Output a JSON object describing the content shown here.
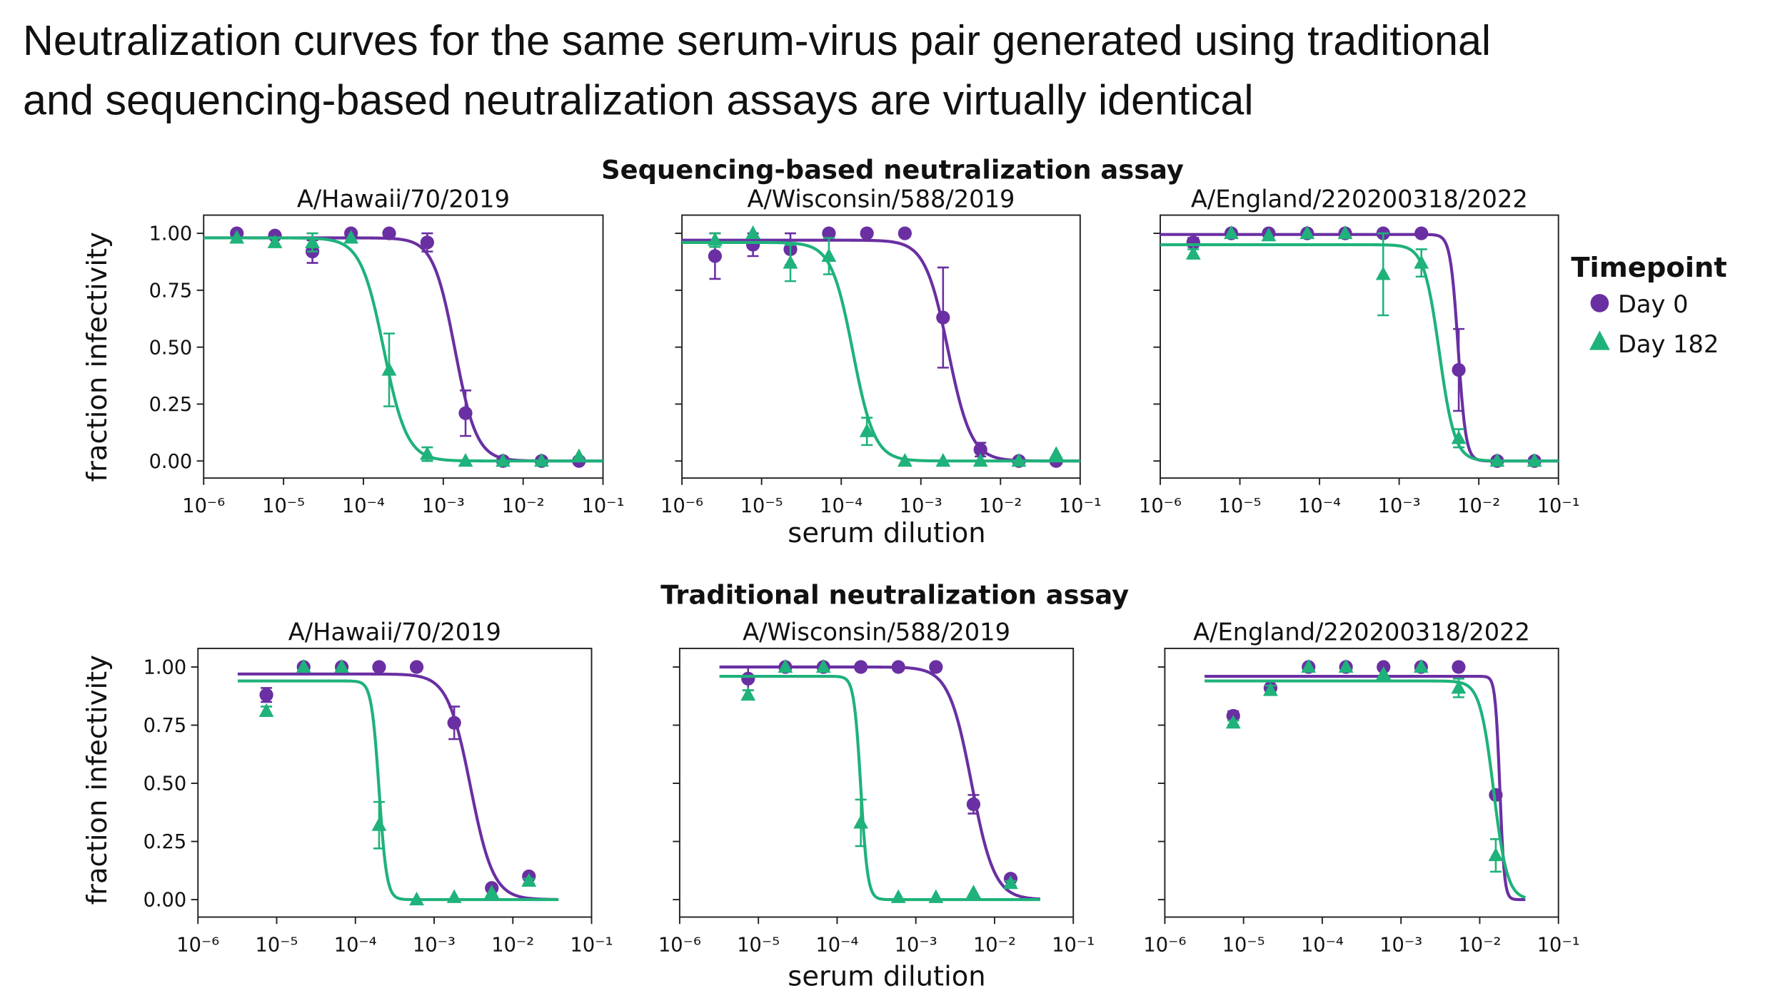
{
  "headline": {
    "line1": "Neutralization curves for the same serum-virus pair generated using traditional",
    "line2": "and sequencing-based neutralization assays are virtually identical"
  },
  "colors": {
    "day0": "#6a2fa2",
    "day182": "#1fb27b"
  },
  "legend": {
    "title": "Timepoint",
    "items": [
      {
        "label": "Day 0",
        "marker": "circle",
        "color": "#6a2fa2"
      },
      {
        "label": "Day 182",
        "marker": "triangle",
        "color": "#1fb27b"
      }
    ]
  },
  "chart_data": [
    {
      "type": "line",
      "assay": "Sequencing-based neutralization assay",
      "xlabel": "serum dilution",
      "ylabel": "fraction infectivity",
      "xscale": "log",
      "xlim": [
        1e-06,
        0.1
      ],
      "ylim": [
        -0.075,
        1.08
      ],
      "xticks": [
        1e-06,
        1e-05,
        0.0001,
        0.001,
        0.01,
        0.1
      ],
      "xtick_labels": [
        "10⁻⁶",
        "10⁻⁵",
        "10⁻⁴",
        "10⁻³",
        "10⁻²",
        "10⁻¹"
      ],
      "yticks": [
        0,
        0.25,
        0.5,
        0.75,
        1.0
      ],
      "ytick_labels": [
        "0.00",
        "0.25",
        "0.50",
        "0.75",
        "1.00"
      ],
      "panels": [
        {
          "title": "A/Hawaii/70/2019",
          "x": [
            2.6e-06,
            7.8e-06,
            2.3e-05,
            7e-05,
            0.00021,
            0.00063,
            0.0019,
            0.0056,
            0.017,
            0.05
          ],
          "series": [
            {
              "name": "Day 0",
              "y": [
                1.0,
                0.99,
                0.92,
                1.0,
                1.0,
                0.96,
                0.21,
                0.0,
                0.0,
                0.0
              ],
              "err": [
                0,
                0,
                0.05,
                0,
                0,
                0.04,
                0.1,
                0,
                0,
                0
              ],
              "fit": {
                "top": 0.98,
                "bottom": 0,
                "ic50": 0.0014,
                "hill": 3.2,
                "xmin": 1e-06,
                "xmax": 0.1
              }
            },
            {
              "name": "Day 182",
              "y": [
                0.98,
                0.96,
                0.96,
                0.98,
                0.4,
                0.03,
                0.0,
                0.0,
                0.0,
                0.02
              ],
              "err": [
                0,
                0,
                0.04,
                0,
                0.16,
                0.03,
                0,
                0,
                0,
                0
              ],
              "fit": {
                "top": 0.98,
                "bottom": 0,
                "ic50": 0.00018,
                "hill": 3.0,
                "xmin": 1e-06,
                "xmax": 0.1
              }
            }
          ]
        },
        {
          "title": "A/Wisconsin/588/2019",
          "x": [
            2.6e-06,
            7.8e-06,
            2.3e-05,
            7e-05,
            0.00021,
            0.00063,
            0.0019,
            0.0056,
            0.017,
            0.05
          ],
          "series": [
            {
              "name": "Day 0",
              "y": [
                0.9,
                0.95,
                0.93,
                1.0,
                1.0,
                1.0,
                0.63,
                0.05,
                0.0,
                0.0
              ],
              "err": [
                0.1,
                0.05,
                0.07,
                0,
                0,
                0,
                0.22,
                0.03,
                0,
                0
              ],
              "fit": {
                "top": 0.97,
                "bottom": 0,
                "ic50": 0.0022,
                "hill": 3.0,
                "xmin": 1e-06,
                "xmax": 0.1
              }
            },
            {
              "name": "Day 182",
              "y": [
                0.97,
                1.0,
                0.87,
                0.9,
                0.13,
                0.0,
                0.0,
                0.0,
                0.0,
                0.03
              ],
              "err": [
                0.03,
                0,
                0.08,
                0.08,
                0.06,
                0,
                0,
                0,
                0,
                0
              ],
              "fit": {
                "top": 0.96,
                "bottom": 0,
                "ic50": 0.00014,
                "hill": 3.2,
                "xmin": 1e-06,
                "xmax": 0.1
              }
            }
          ]
        },
        {
          "title": "A/England/220200318/2022",
          "x": [
            2.6e-06,
            7.8e-06,
            2.3e-05,
            7e-05,
            0.00021,
            0.00063,
            0.0019,
            0.0056,
            0.017,
            0.05
          ],
          "series": [
            {
              "name": "Day 0",
              "y": [
                0.96,
                1.0,
                1.0,
                1.0,
                1.0,
                1.0,
                1.0,
                0.4,
                0.0,
                0.0
              ],
              "err": [
                0.02,
                0,
                0,
                0,
                0,
                0,
                0,
                0.18,
                0,
                0
              ],
              "fit": {
                "top": 0.995,
                "bottom": 0,
                "ic50": 0.0055,
                "hill": 9,
                "xmin": 1e-06,
                "xmax": 0.1
              }
            },
            {
              "name": "Day 182",
              "y": [
                0.91,
                1.0,
                0.99,
                1.0,
                1.0,
                0.82,
                0.87,
                0.1,
                0.0,
                0.0
              ],
              "err": [
                0.02,
                0,
                0,
                0,
                0,
                0.18,
                0.06,
                0.04,
                0,
                0
              ],
              "fit": {
                "top": 0.95,
                "bottom": 0,
                "ic50": 0.0032,
                "hill": 4.5,
                "xmin": 1e-06,
                "xmax": 0.1
              }
            }
          ]
        }
      ]
    },
    {
      "type": "line",
      "assay": "Traditional neutralization assay",
      "xlabel": "serum dilution",
      "ylabel": "fraction infectivity",
      "xscale": "log",
      "xlim": [
        1e-06,
        0.1
      ],
      "ylim": [
        -0.075,
        1.08
      ],
      "xticks": [
        1e-06,
        1e-05,
        0.0001,
        0.001,
        0.01,
        0.1
      ],
      "xtick_labels": [
        "10⁻⁶",
        "10⁻⁵",
        "10⁻⁴",
        "10⁻³",
        "10⁻²",
        "10⁻¹"
      ],
      "yticks": [
        0,
        0.25,
        0.5,
        0.75,
        1.0
      ],
      "ytick_labels": [
        "0.00",
        "0.25",
        "0.50",
        "0.75",
        "1.00"
      ],
      "panels": [
        {
          "title": "A/Hawaii/70/2019",
          "x": [
            7.4e-06,
            2.2e-05,
            6.7e-05,
            0.0002,
            0.0006,
            0.0018,
            0.0054,
            0.016
          ],
          "series": [
            {
              "name": "Day 0",
              "y": [
                0.88,
                1.0,
                1.0,
                1.0,
                1.0,
                0.76,
                0.05,
                0.1
              ],
              "err": [
                0.03,
                0,
                0,
                0,
                0,
                0.07,
                0.01,
                0.01
              ],
              "fit": {
                "top": 0.97,
                "bottom": 0,
                "ic50": 0.0029,
                "hill": 3.0,
                "xmin": 3.2e-06,
                "xmax": 0.038
              }
            },
            {
              "name": "Day 182",
              "y": [
                0.81,
                1.0,
                1.0,
                0.32,
                0.0,
                0.01,
                0.03,
                0.08
              ],
              "err": [
                0.02,
                0,
                0,
                0.1,
                0,
                0,
                0,
                0.01
              ],
              "fit": {
                "top": 0.94,
                "bottom": 0,
                "ic50": 0.0002,
                "hill": 9,
                "xmin": 3.2e-06,
                "xmax": 0.038
              }
            }
          ]
        },
        {
          "title": "A/Wisconsin/588/2019",
          "x": [
            7.4e-06,
            2.2e-05,
            6.7e-05,
            0.0002,
            0.0006,
            0.0018,
            0.0054,
            0.016
          ],
          "series": [
            {
              "name": "Day 0",
              "y": [
                0.95,
                1.0,
                1.0,
                1.0,
                1.0,
                1.0,
                0.41,
                0.09
              ],
              "err": [
                0.05,
                0,
                0,
                0,
                0,
                0,
                0.04,
                0.01
              ],
              "fit": {
                "top": 1.0,
                "bottom": 0,
                "ic50": 0.0051,
                "hill": 3.0,
                "xmin": 3.2e-06,
                "xmax": 0.038
              }
            },
            {
              "name": "Day 182",
              "y": [
                0.88,
                1.0,
                1.0,
                0.33,
                0.01,
                0.01,
                0.03,
                0.07
              ],
              "err": [
                0.02,
                0,
                0,
                0.1,
                0,
                0,
                0,
                0.01
              ],
              "fit": {
                "top": 0.96,
                "bottom": 0,
                "ic50": 0.0002,
                "hill": 10,
                "xmin": 3.2e-06,
                "xmax": 0.038
              }
            }
          ]
        },
        {
          "title": "A/England/220200318/2022",
          "x": [
            7.4e-06,
            2.2e-05,
            6.7e-05,
            0.0002,
            0.0006,
            0.0018,
            0.0054,
            0.016
          ],
          "series": [
            {
              "name": "Day 0",
              "y": [
                0.79,
                0.91,
                1.0,
                1.0,
                1.0,
                1.0,
                1.0,
                0.45
              ],
              "err": [
                0.02,
                0.01,
                0,
                0,
                0,
                0,
                0,
                0.01
              ],
              "fit": {
                "top": 0.96,
                "bottom": 0,
                "ic50": 0.018,
                "hill": 15,
                "xmin": 3.2e-06,
                "xmax": 0.038
              }
            },
            {
              "name": "Day 182",
              "y": [
                0.76,
                0.9,
                1.0,
                1.0,
                0.97,
                1.0,
                0.91,
                0.19
              ],
              "err": [
                0.01,
                0.02,
                0,
                0,
                0,
                0,
                0.04,
                0.07
              ],
              "fit": {
                "top": 0.94,
                "bottom": 0,
                "ic50": 0.015,
                "hill": 5,
                "xmin": 3.2e-06,
                "xmax": 0.038
              }
            }
          ]
        }
      ]
    }
  ]
}
